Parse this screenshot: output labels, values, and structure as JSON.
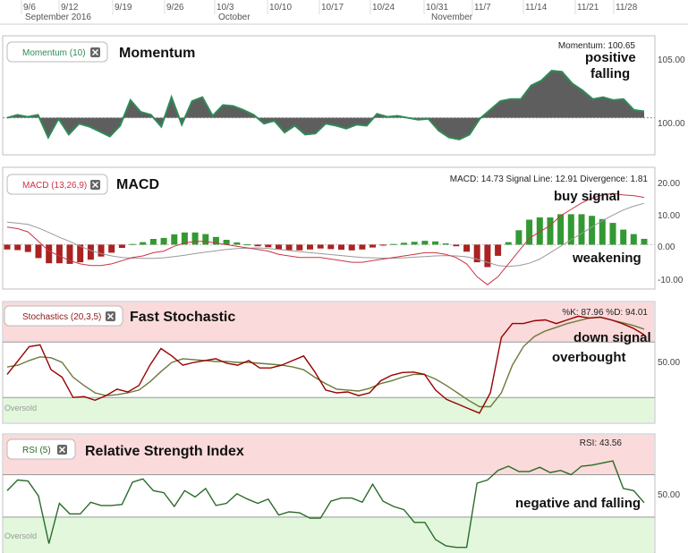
{
  "xaxis": {
    "ticks": [
      "9/6",
      "9/12",
      "9/19",
      "9/26",
      "10/3",
      "10/10",
      "10/17",
      "10/24",
      "10/31",
      "11/7",
      "11/14",
      "11/21",
      "11/28"
    ],
    "months": [
      "September 2016",
      "October",
      "November"
    ]
  },
  "colors": {
    "momentum_line": "#2e8b57",
    "area": "#555555",
    "macd_line": "#cc3344",
    "signal_line": "#999999",
    "hist_pos": "#339933",
    "hist_neg": "#aa2222",
    "overbought_zone": "#fadada",
    "oversold_zone": "#e2f7dc",
    "stoch_k": "#990000",
    "stoch_d": "#6b7a3a",
    "rsi_line": "#2a6b2a"
  },
  "panels": {
    "momentum": {
      "pill": "Momentum (10)",
      "close_icon": "close-icon",
      "title": "Momentum",
      "readout": "Momentum: 100.65",
      "annotations": [
        "positive",
        "falling"
      ],
      "yticks": [
        "105.00",
        "100.00"
      ]
    },
    "macd": {
      "pill": "MACD (13,26,9)",
      "close_icon": "close-icon",
      "title": "MACD",
      "readout": "MACD: 14.73 Signal Line: 12.91 Divergence: 1.81",
      "annotations": [
        "buy signal",
        "weakening"
      ],
      "yticks": [
        "20.00",
        "10.00",
        "0.00",
        "-10.00"
      ]
    },
    "stoch": {
      "pill": "Stochastics (20,3,5)",
      "close_icon": "close-icon",
      "title": "Fast Stochastic",
      "readout": "%K: 87.96 %D: 94.01",
      "annotations": [
        "down signal",
        "overbought"
      ],
      "yticks": [
        "50.00"
      ],
      "zone_label": "Oversold"
    },
    "rsi": {
      "pill": "RSI (5)",
      "close_icon": "close-icon",
      "title": "Relative Strength Index",
      "readout": "RSI: 43.56",
      "annotations": [
        "negative and falling"
      ],
      "yticks": [
        "50.00"
      ],
      "zone_label": "Oversold"
    }
  },
  "chart_data": [
    {
      "type": "area",
      "name": "Momentum (10)",
      "baseline": 100,
      "ylim": [
        96.5,
        108
      ],
      "x": [
        "9/1",
        "9/2",
        "9/6",
        "9/7",
        "9/8",
        "9/9",
        "9/12",
        "9/13",
        "9/14",
        "9/15",
        "9/16",
        "9/19",
        "9/20",
        "9/21",
        "9/22",
        "9/23",
        "9/26",
        "9/27",
        "9/28",
        "9/29",
        "9/30",
        "10/3",
        "10/4",
        "10/5",
        "10/6",
        "10/7",
        "10/10",
        "10/11",
        "10/12",
        "10/13",
        "10/14",
        "10/17",
        "10/18",
        "10/19",
        "10/20",
        "10/21",
        "10/24",
        "10/25",
        "10/26",
        "10/27",
        "10/28",
        "10/31",
        "11/1",
        "11/2",
        "11/3",
        "11/4",
        "11/7",
        "11/8",
        "11/9",
        "11/10",
        "11/11",
        "11/14",
        "11/15",
        "11/16",
        "11/17",
        "11/18",
        "11/21",
        "11/22",
        "11/23",
        "11/25",
        "11/28",
        "11/29",
        "11/30"
      ],
      "values": [
        100.0,
        100.3,
        100.1,
        100.3,
        98.0,
        99.9,
        98.3,
        99.4,
        99.1,
        98.6,
        98.1,
        99.2,
        101.8,
        100.6,
        100.3,
        99.1,
        102.1,
        99.3,
        101.7,
        102.1,
        100.2,
        101.3,
        101.2,
        100.8,
        100.3,
        99.4,
        99.7,
        98.5,
        99.2,
        98.3,
        98.4,
        99.4,
        99.2,
        98.9,
        99.3,
        99.2,
        100.4,
        100.1,
        100.2,
        100.0,
        99.8,
        99.9,
        98.7,
        98.0,
        97.8,
        98.3,
        99.9,
        100.8,
        101.7,
        101.9,
        101.9,
        103.3,
        103.8,
        104.8,
        104.7,
        103.5,
        102.8,
        101.9,
        102.1,
        101.8,
        101.9,
        100.8,
        100.65
      ]
    },
    {
      "type": "bar",
      "name": "MACD (13,26,9)",
      "ylim": [
        -13,
        23
      ],
      "series": [
        {
          "name": "MACD",
          "values": [
            5.5,
            5.0,
            4.0,
            1.0,
            -2.0,
            -3.5,
            -5.0,
            -6.0,
            -6.5,
            -6.5,
            -6.0,
            -5.0,
            -4.0,
            -3.5,
            -2.5,
            -2.0,
            -0.5,
            0.5,
            1.0,
            1.0,
            0.5,
            0.0,
            -0.5,
            -1.0,
            -1.5,
            -2.0,
            -3.0,
            -3.5,
            -4.0,
            -4.0,
            -4.0,
            -4.5,
            -5.0,
            -5.5,
            -5.5,
            -5.0,
            -4.5,
            -4.0,
            -3.5,
            -3.0,
            -2.5,
            -2.5,
            -3.0,
            -4.0,
            -6.0,
            -10.0,
            -12.5,
            -10.0,
            -6.0,
            -2.0,
            2.0,
            4.0,
            6.0,
            9.0,
            11.0,
            13.0,
            14.5,
            15.5,
            16.0,
            15.5,
            15.3,
            14.73
          ]
        },
        {
          "name": "Signal Line",
          "values": [
            7.0,
            6.7,
            6.3,
            5.2,
            3.8,
            2.3,
            1.0,
            -0.5,
            -1.8,
            -2.8,
            -3.5,
            -4.0,
            -4.2,
            -4.3,
            -4.3,
            -4.1,
            -3.7,
            -3.3,
            -2.8,
            -2.3,
            -1.9,
            -1.5,
            -1.2,
            -1.1,
            -1.0,
            -1.2,
            -1.5,
            -1.8,
            -2.2,
            -2.5,
            -2.8,
            -3.1,
            -3.4,
            -3.7,
            -4.0,
            -4.1,
            -4.2,
            -4.2,
            -4.1,
            -3.9,
            -3.7,
            -3.5,
            -3.4,
            -3.5,
            -3.8,
            -4.5,
            -5.5,
            -6.5,
            -6.8,
            -6.5,
            -5.8,
            -4.5,
            -2.5,
            -0.5,
            1.5,
            3.5,
            5.5,
            7.5,
            9.2,
            10.8,
            12.0,
            12.91
          ]
        },
        {
          "name": "Divergence",
          "values": [
            -1.5,
            -1.7,
            -2.3,
            -4.2,
            -5.8,
            -5.8,
            -6.0,
            -5.5,
            -4.7,
            -3.7,
            -2.5,
            -1.0,
            0.2,
            0.8,
            1.8,
            2.1,
            3.2,
            3.8,
            3.8,
            3.3,
            2.4,
            1.5,
            0.7,
            0.1,
            -0.5,
            -0.8,
            -1.5,
            -1.7,
            -1.8,
            -1.5,
            -1.2,
            -1.4,
            -1.6,
            -1.8,
            -1.5,
            -0.9,
            -0.3,
            0.2,
            0.6,
            0.9,
            1.2,
            1.0,
            0.4,
            -0.5,
            -2.2,
            -5.5,
            -7.0,
            -3.5,
            0.8,
            4.5,
            7.8,
            8.5,
            8.5,
            9.5,
            9.5,
            9.5,
            9.0,
            8.0,
            6.8,
            4.7,
            3.3,
            1.81
          ]
        }
      ]
    },
    {
      "type": "line",
      "name": "Stochastics (20,3,5)",
      "ylim": [
        -5,
        120
      ],
      "overbought": 80,
      "oversold": 20,
      "series": [
        {
          "name": "%K",
          "values": [
            45.0,
            60.0,
            75.0,
            77.0,
            50.0,
            42.0,
            20.0,
            21.0,
            17.0,
            22.0,
            29.0,
            26.0,
            33.0,
            55.0,
            73.0,
            65.0,
            55.0,
            58.0,
            60.0,
            62.0,
            57.0,
            55.0,
            60.0,
            52.0,
            52.0,
            55.0,
            60.0,
            65.0,
            48.0,
            28.0,
            25.0,
            26.0,
            22.0,
            25.0,
            38.0,
            44.0,
            47.0,
            47.5,
            45.0,
            28.0,
            18.0,
            13.0,
            8.0,
            3.0,
            25.0,
            85.0,
            100.0,
            100.0,
            103.0,
            104.0,
            100.0,
            104.0,
            108.0,
            106.0,
            107.0,
            104.0,
            100.0,
            95.0,
            87.96
          ]
        },
        {
          "name": "%D",
          "values": [
            53.0,
            55.0,
            60.0,
            64.0,
            63.0,
            58.0,
            42.0,
            33.0,
            25.0,
            22.0,
            23.0,
            25.0,
            28.0,
            37.0,
            48.0,
            58.0,
            62.0,
            61.0,
            60.0,
            59.0,
            59.0,
            58.0,
            58.0,
            57.0,
            56.0,
            55.0,
            53.0,
            50.0,
            42.0,
            35.0,
            29.0,
            28.0,
            27.0,
            30.0,
            35.0,
            38.0,
            42.0,
            45.0,
            45.0,
            40.0,
            33.0,
            25.0,
            17.0,
            10.0,
            10.0,
            25.0,
            55.0,
            75.0,
            86.0,
            92.0,
            96.0,
            100.0,
            103.0,
            106.0,
            107.0,
            104.0,
            101.0,
            98.0,
            94.01
          ]
        }
      ]
    },
    {
      "type": "line",
      "name": "RSI (5)",
      "ylim": [
        -3,
        105
      ],
      "overbought": 70,
      "oversold": 30,
      "series_name": "RSI",
      "values": [
        55.0,
        65.0,
        64.0,
        50.0,
        5.0,
        43.0,
        33.0,
        33.0,
        44.0,
        41.0,
        41.0,
        42.0,
        63.0,
        66.0,
        55.0,
        53.0,
        40.0,
        55.0,
        49.0,
        57.0,
        41.0,
        43.0,
        52.0,
        47.0,
        43.0,
        47.0,
        32.0,
        35.0,
        34.0,
        29.0,
        29.0,
        45.0,
        48.0,
        48.0,
        44.0,
        61.0,
        45.0,
        40.0,
        37.0,
        25.0,
        25.0,
        9.0,
        3.0,
        1.5,
        1.5,
        62.0,
        65.0,
        74.0,
        78.0,
        73.0,
        73.0,
        77.0,
        72.0,
        74.0,
        70.0,
        78.0,
        79.0,
        81.0,
        83.0,
        57.0,
        55.0,
        43.56
      ]
    }
  ]
}
